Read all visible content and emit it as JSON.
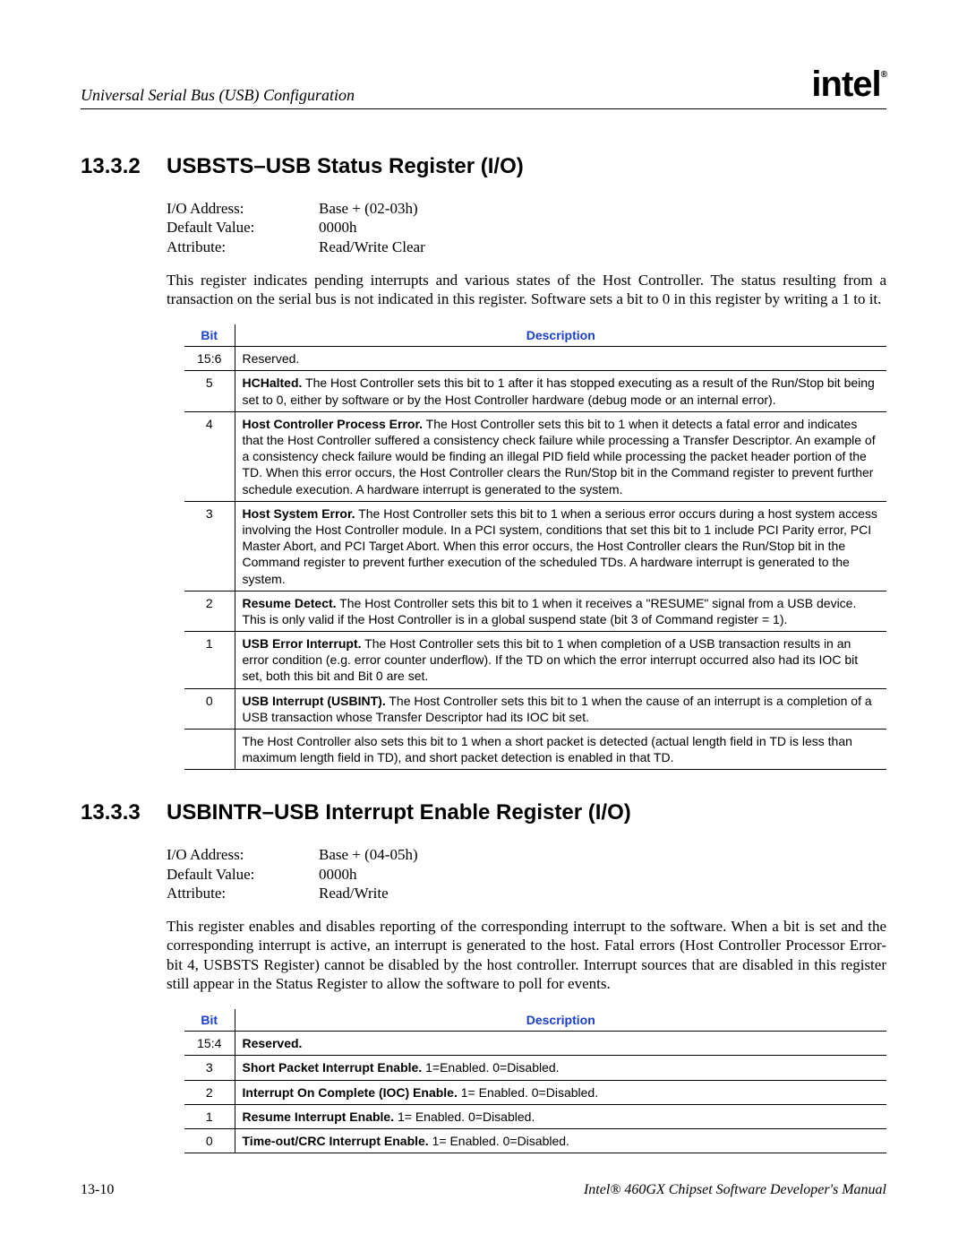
{
  "header": {
    "chapter": "Universal Serial Bus (USB) Configuration",
    "logo_text": "intel",
    "logo_r": "®"
  },
  "colors": {
    "heading_blue": "#1a3fcf",
    "text": "#000000",
    "background": "#ffffff",
    "rule": "#000000"
  },
  "typography": {
    "body_family": "Times New Roman",
    "table_family": "Arial",
    "heading_family": "Arial",
    "heading_size_pt": 18,
    "body_size_pt": 12,
    "table_size_pt": 10
  },
  "section1": {
    "number": "13.3.2",
    "title": "USBSTS–USB Status Register (I/O)",
    "attrs": [
      {
        "label": "I/O Address:",
        "value": "Base + (02-03h)"
      },
      {
        "label": "Default Value:",
        "value": "0000h"
      },
      {
        "label": "Attribute:",
        "value": "Read/Write Clear"
      }
    ],
    "paragraph": "This register indicates pending interrupts and various states of the Host Controller. The status resulting from a transaction on the serial bus is not indicated in this register. Software sets a bit to 0 in this register by writing a 1 to it.",
    "table": {
      "col_bit": "Bit",
      "col_desc": "Description",
      "rows": [
        {
          "bit": "15:6",
          "bold": "",
          "rest": "Reserved."
        },
        {
          "bit": "5",
          "bold": "HCHalted.",
          "rest": " The Host Controller sets this bit to 1 after it has stopped executing as a result of the Run/Stop bit being set to 0, either by software or by the Host Controller hardware (debug mode or an internal error)."
        },
        {
          "bit": "4",
          "bold": "Host Controller Process Error.",
          "rest": " The Host Controller sets this bit to 1 when it detects a fatal error and indicates that the Host Controller suffered a consistency check failure while processing a Transfer Descriptor. An example of a consistency check failure would be finding an illegal PID field while processing the packet header portion of the TD. When this error occurs, the Host Controller clears the Run/Stop bit in the Command register to prevent further schedule execution. A hardware interrupt is generated to the system."
        },
        {
          "bit": "3",
          "bold": "Host System Error.",
          "rest": " The Host Controller sets this bit to 1 when a serious error occurs during a host system access involving the Host Controller module. In a PCI system, conditions that set this bit to 1 include PCI Parity error, PCI Master Abort, and PCI Target Abort. When this error occurs, the Host Controller clears the Run/Stop bit in the Command register to prevent further execution of the scheduled TDs. A hardware interrupt is generated to the system."
        },
        {
          "bit": "2",
          "bold": "Resume Detect.",
          "rest": " The Host Controller sets this bit to 1 when it receives a \"RESUME\" signal from a USB device. This is only valid if the Host Controller is in a global suspend state (bit 3 of Command register = 1)."
        },
        {
          "bit": "1",
          "bold": "USB Error Interrupt.",
          "rest": " The Host Controller sets this bit to 1 when completion of a USB transaction results in an error condition (e.g. error counter underflow). If the TD on which the error interrupt occurred also had its IOC bit set, both this bit and Bit 0 are set."
        },
        {
          "bit": "0",
          "bold": "USB Interrupt (USBINT).",
          "rest": " The Host Controller sets this bit to 1 when the cause of an interrupt is a completion of a USB transaction whose Transfer Descriptor had its IOC bit set."
        },
        {
          "bit": "",
          "bold": "",
          "rest": "The Host Controller also sets this bit to 1 when a short packet is detected (actual length field in TD is less than maximum length field in TD), and short packet detection is enabled in that TD."
        }
      ]
    }
  },
  "section2": {
    "number": "13.3.3",
    "title": "USBINTR–USB Interrupt Enable Register (I/O)",
    "attrs": [
      {
        "label": "I/O Address:",
        "value": "Base + (04-05h)"
      },
      {
        "label": "Default Value:",
        "value": "0000h"
      },
      {
        "label": "Attribute:",
        "value": "Read/Write"
      }
    ],
    "paragraph": "This register enables and disables reporting of the corresponding interrupt to the software. When a bit is set and the corresponding interrupt is active, an interrupt is generated to the host. Fatal errors (Host Controller Processor Error- bit 4, USBSTS Register) cannot be disabled by the host controller. Interrupt sources that are disabled in this register still appear in the Status Register to allow the software to poll for events.",
    "table": {
      "col_bit": "Bit",
      "col_desc": "Description",
      "rows": [
        {
          "bit": "15:4",
          "bold": "Reserved.",
          "rest": ""
        },
        {
          "bit": "3",
          "bold": "Short Packet Interrupt Enable.",
          "rest": " 1=Enabled. 0=Disabled."
        },
        {
          "bit": "2",
          "bold": "Interrupt On Complete (IOC) Enable.",
          "rest": " 1= Enabled. 0=Disabled."
        },
        {
          "bit": "1",
          "bold": "Resume Interrupt Enable.",
          "rest": " 1= Enabled. 0=Disabled."
        },
        {
          "bit": "0",
          "bold": "Time-out/CRC Interrupt Enable.",
          "rest": " 1= Enabled. 0=Disabled."
        }
      ]
    }
  },
  "footer": {
    "page": "13-10",
    "manual": "Intel® 460GX Chipset Software Developer's Manual"
  }
}
